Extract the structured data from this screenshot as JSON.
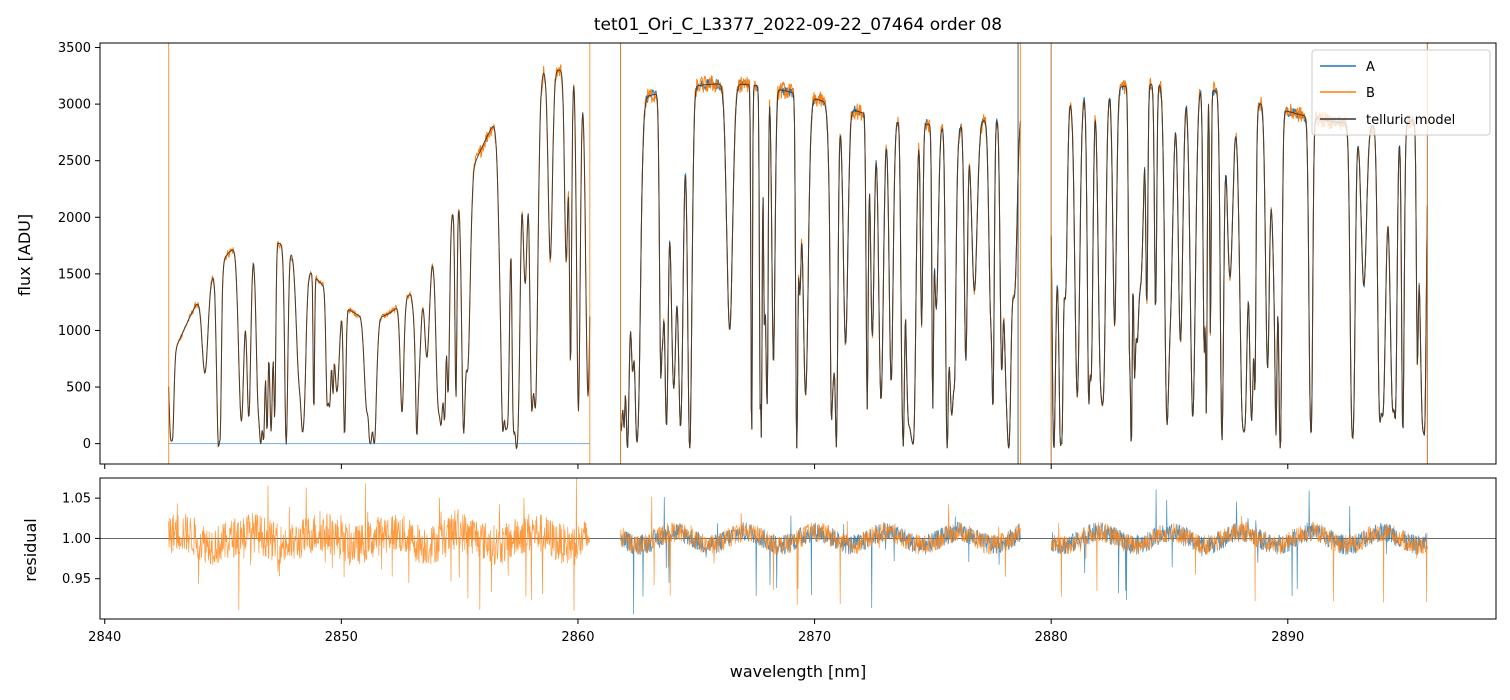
{
  "title": "tet01_Ori_C_L3377_2022-09-22_07464  order 08",
  "xlabel": "wavelength [nm]",
  "colors": {
    "A": "#1f77b4",
    "B": "#ff7f0e",
    "telluric": "#333333",
    "ref": "#555555"
  },
  "legend": [
    {
      "name": "A",
      "color": "#1f77b4"
    },
    {
      "name": "B",
      "color": "#ff7f0e"
    },
    {
      "name": "telluric model",
      "color": "#333333"
    }
  ],
  "chart_data": [
    {
      "type": "line",
      "ylabel": "flux [ADU]",
      "xlim": [
        2839.8,
        2898.8
      ],
      "ylim": [
        -180,
        3540
      ],
      "yticks": [
        0,
        500,
        1000,
        1500,
        2000,
        2500,
        3000,
        3500
      ],
      "xticks": [
        2840,
        2850,
        2860,
        2870,
        2880,
        2890
      ],
      "legend_position": "top-right",
      "series": [
        {
          "name": "A",
          "segments": [
            [
              2842.7,
              2860.5
            ],
            [
              2861.8,
              2878.7
            ],
            [
              2880.0,
              2895.9
            ]
          ]
        },
        {
          "name": "B",
          "segments": [
            [
              2842.7,
              2860.5
            ],
            [
              2861.8,
              2878.7
            ],
            [
              2880.0,
              2895.9
            ]
          ]
        },
        {
          "name": "telluric model",
          "segments": [
            [
              2842.7,
              2860.5
            ],
            [
              2861.8,
              2878.7
            ],
            [
              2880.0,
              2895.9
            ]
          ]
        }
      ],
      "edge_spikes": [
        {
          "series": "B",
          "x": 2842.7
        },
        {
          "series": "B",
          "x": 2860.5
        },
        {
          "series": "A",
          "x": 2861.8
        },
        {
          "series": "B",
          "x": 2861.8
        },
        {
          "series": "telluric model",
          "x": 2878.6
        },
        {
          "series": "B",
          "x": 2878.7
        },
        {
          "series": "A",
          "x": 2880.0
        },
        {
          "series": "B",
          "x": 2880.0
        },
        {
          "series": "A",
          "x": 2895.9
        },
        {
          "series": "B",
          "x": 2895.9
        }
      ],
      "zero_line": {
        "series": "A",
        "x": [
          2842.7,
          2860.5
        ],
        "y": 0
      }
    },
    {
      "type": "line",
      "ylabel": "residual",
      "xlim": [
        2839.8,
        2898.8
      ],
      "ylim": [
        0.9,
        1.075
      ],
      "yticks": [
        0.95,
        1.0,
        1.05
      ],
      "ytick_labels": [
        "0.95",
        "1.00",
        "1.05"
      ],
      "xticks": [
        2840,
        2850,
        2860,
        2870,
        2880,
        2890
      ],
      "reference_line": 1.0,
      "series": [
        {
          "name": "A",
          "segments": [
            [
              2861.8,
              2878.7
            ],
            [
              2880.0,
              2895.9
            ]
          ]
        },
        {
          "name": "B",
          "segments": [
            [
              2842.7,
              2860.5
            ],
            [
              2861.8,
              2878.7
            ],
            [
              2880.0,
              2895.9
            ]
          ]
        }
      ]
    }
  ]
}
